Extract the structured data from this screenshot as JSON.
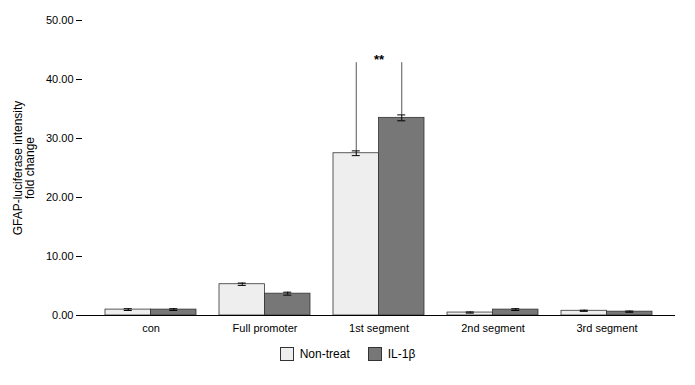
{
  "chart_data": {
    "type": "bar",
    "categories": [
      "con",
      "Full promoter",
      "1st segment",
      "2nd segment",
      "3rd segment"
    ],
    "series": [
      {
        "name": "Non-treat",
        "color": "#eeeeee",
        "values": [
          1.0,
          5.3,
          27.5,
          0.5,
          0.8
        ],
        "errors": [
          0.15,
          0.2,
          0.4,
          0.1,
          0.1
        ]
      },
      {
        "name": "IL-1β",
        "color": "#777777",
        "values": [
          1.0,
          3.7,
          33.5,
          1.0,
          0.65
        ],
        "errors": [
          0.15,
          0.25,
          0.5,
          0.15,
          0.1
        ]
      }
    ],
    "ylabel": "GFAP-luciferase intensity\nfold change",
    "ylim": [
      0,
      50
    ],
    "yticks": [
      {
        "value": 0,
        "label": "0.00"
      },
      {
        "value": 10,
        "label": "10.00"
      },
      {
        "value": 20,
        "label": "20.00"
      },
      {
        "value": 30,
        "label": "30.00"
      },
      {
        "value": 40,
        "label": "40.00"
      },
      {
        "value": 50,
        "label": "50.00"
      }
    ],
    "legend": "bottom",
    "annotations": [
      {
        "text": "**",
        "category": "1st segment",
        "y": 42
      }
    ]
  }
}
